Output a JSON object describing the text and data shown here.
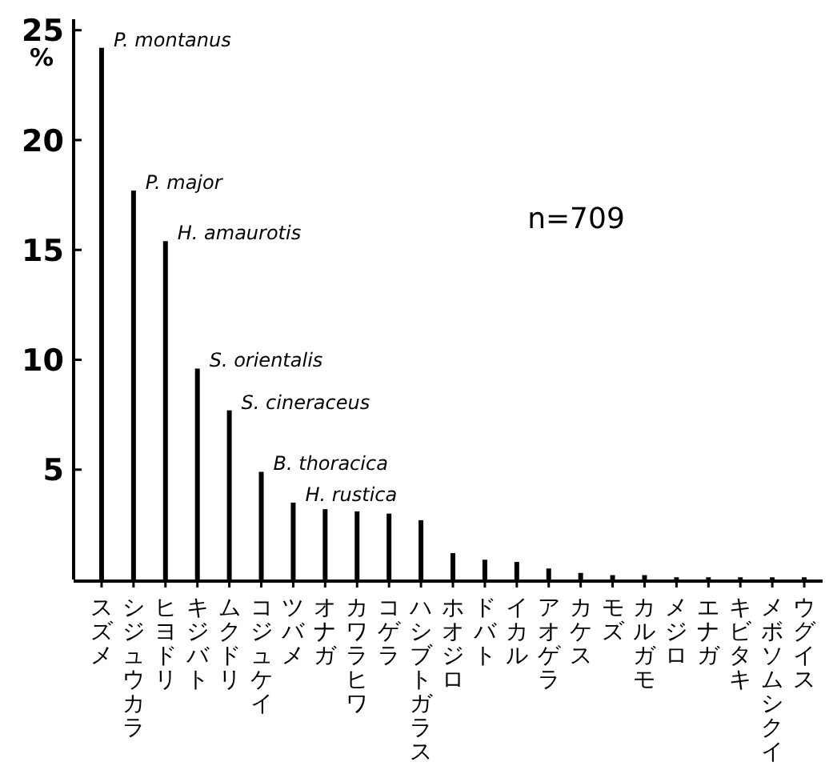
{
  "chart_data": {
    "type": "bar",
    "ylabel": "%",
    "categories": [
      "スズメ",
      "シジュウカラ",
      "ヒヨドリ",
      "キジバト",
      "ムクドリ",
      "コジュケイ",
      "ツバメ",
      "オナガ",
      "カワラヒワ",
      "コゲラ",
      "ハシブトガラス",
      "ホオジロ",
      "ドバト",
      "イカル",
      "アオゲラ",
      "カケス",
      "モズ",
      "カルガモ",
      "メジロ",
      "エナガ",
      "キビタキ",
      "メボソムシクイ",
      "ウグイス"
    ],
    "values": [
      24.2,
      17.7,
      15.4,
      9.6,
      7.7,
      4.9,
      3.5,
      3.2,
      3.1,
      3.0,
      2.7,
      1.2,
      0.9,
      0.8,
      0.5,
      0.3,
      0.2,
      0.2,
      0.1,
      0.1,
      0.1,
      0.1,
      0.1
    ],
    "color": "#000000",
    "ylim": [
      0,
      25.5
    ],
    "yticks": [
      5,
      10,
      15,
      20,
      25
    ],
    "grid": false,
    "annotations": [
      {
        "text": "P. montanus",
        "x": "スズメ",
        "y": 24.2
      },
      {
        "text": "P. major",
        "x": "シジュウカラ",
        "y": 17.7
      },
      {
        "text": "H. amaurotis",
        "x": "ヒヨドリ",
        "y": 15.4
      },
      {
        "text": "S. orientalis",
        "x": "キジバト",
        "y": 9.6
      },
      {
        "text": "S. cineraceus",
        "x": "ムクドリ",
        "y": 7.7
      },
      {
        "text": "B. thoracica",
        "x": "コジュケイ",
        "y": 4.9
      },
      {
        "text": "H. rustica",
        "x": "ツバメ",
        "y": 3.5
      },
      "n=709"
    ]
  }
}
